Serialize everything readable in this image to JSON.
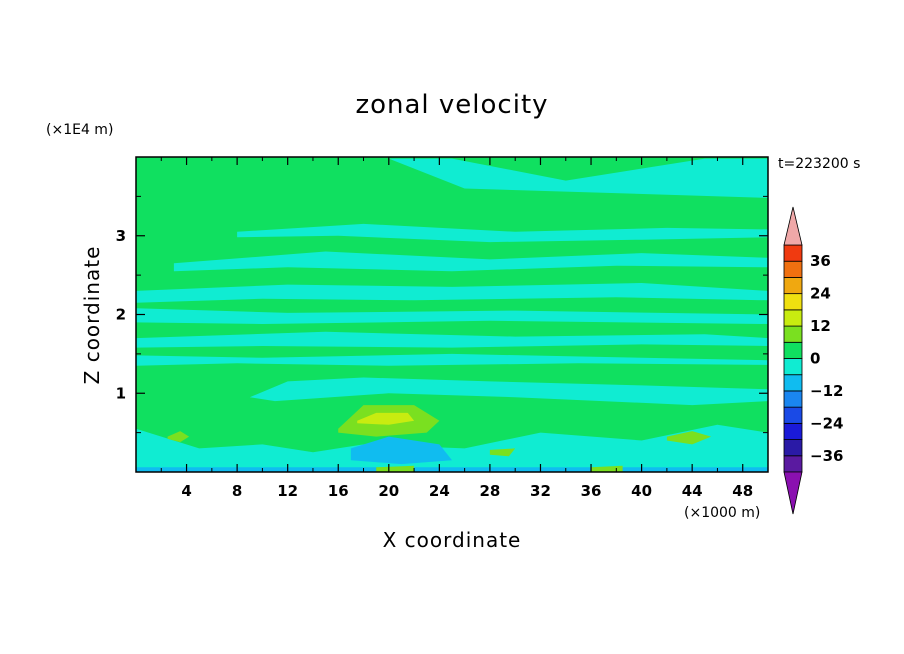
{
  "chart_data": {
    "type": "heatmap",
    "title": "zonal velocity",
    "xlabel": "X coordinate",
    "ylabel": "Z coordinate",
    "x_unit": "(×1000 m)",
    "y_unit": "(×1E4 m)",
    "time_label": "t=223200 s",
    "xlim": [
      0,
      50
    ],
    "ylim": [
      0,
      4
    ],
    "x_ticks": [
      4,
      8,
      12,
      16,
      20,
      24,
      28,
      32,
      36,
      40,
      44,
      48
    ],
    "y_ticks": [
      1,
      2,
      3
    ],
    "colorbar": {
      "levels": [
        -42,
        -36,
        -30,
        -24,
        -18,
        -12,
        -6,
        0,
        6,
        12,
        18,
        24,
        30,
        36,
        42
      ],
      "colors": [
        "#5a1aa0",
        "#2a1aa6",
        "#1a1ad8",
        "#1a4ae6",
        "#1a86f0",
        "#10bcf0",
        "#10ecd2",
        "#10e060",
        "#7ae020",
        "#c8ec10",
        "#f0e010",
        "#f0a810",
        "#f07010",
        "#f03a10",
        "#e01810"
      ],
      "under_color": "#8a10b0",
      "over_color": "#f0a8a8",
      "tick_labels": [
        "36",
        "24",
        "12",
        "0",
        "−12",
        "−24",
        "−36"
      ],
      "tick_values": [
        36,
        24,
        12,
        0,
        -12,
        -24,
        -36
      ]
    },
    "background_color": "#10e060",
    "regions": [
      {
        "level": "-6..0",
        "color": "#10ecd2",
        "x": [
          20,
          26,
          50,
          50,
          45,
          34,
          25
        ],
        "z": [
          3.98,
          3.6,
          3.48,
          3.98,
          3.98,
          3.7,
          3.98
        ]
      },
      {
        "level": "-6..0",
        "color": "#10ecd2",
        "x": [
          8,
          18,
          30,
          42,
          50,
          50,
          40,
          28,
          16,
          8
        ],
        "z": [
          3.05,
          3.15,
          3.05,
          3.1,
          3.08,
          2.98,
          2.95,
          2.92,
          3.0,
          2.98
        ]
      },
      {
        "level": "-6..0",
        "color": "#10ecd2",
        "x": [
          3,
          15,
          28,
          40,
          50,
          50,
          38,
          25,
          12,
          3
        ],
        "z": [
          2.65,
          2.8,
          2.7,
          2.78,
          2.72,
          2.6,
          2.62,
          2.55,
          2.6,
          2.55
        ]
      },
      {
        "level": "-6..0",
        "color": "#10ecd2",
        "x": [
          0,
          12,
          25,
          40,
          50,
          50,
          38,
          22,
          10,
          0
        ],
        "z": [
          2.3,
          2.38,
          2.35,
          2.4,
          2.3,
          2.18,
          2.22,
          2.18,
          2.2,
          2.15
        ]
      },
      {
        "level": "-6..0",
        "color": "#10ecd2",
        "x": [
          0,
          12,
          30,
          50,
          50,
          28,
          10,
          0
        ],
        "z": [
          2.08,
          2.02,
          2.05,
          2.0,
          1.88,
          1.92,
          1.88,
          1.9
        ]
      },
      {
        "level": "-6..0",
        "color": "#10ecd2",
        "x": [
          0,
          15,
          30,
          45,
          50,
          50,
          40,
          25,
          10,
          0
        ],
        "z": [
          1.7,
          1.78,
          1.72,
          1.75,
          1.7,
          1.6,
          1.62,
          1.58,
          1.6,
          1.58
        ]
      },
      {
        "level": "-6..0",
        "color": "#10ecd2",
        "x": [
          0,
          10,
          25,
          40,
          50,
          50,
          35,
          20,
          8,
          0
        ],
        "z": [
          1.48,
          1.45,
          1.5,
          1.45,
          1.42,
          1.36,
          1.38,
          1.35,
          1.38,
          1.35
        ]
      },
      {
        "level": "-6..0",
        "color": "#10ecd2",
        "x": [
          9,
          12,
          18,
          28,
          40,
          50,
          50,
          44,
          30,
          20,
          11
        ],
        "z": [
          0.95,
          1.15,
          1.2,
          1.15,
          1.1,
          1.05,
          0.9,
          0.85,
          0.95,
          1.0,
          0.9
        ]
      },
      {
        "level": "-6..0",
        "color": "#10ecd2",
        "x": [
          0,
          5,
          10,
          14,
          18,
          26,
          32,
          40,
          46,
          50,
          50,
          0
        ],
        "z": [
          0.55,
          0.3,
          0.35,
          0.25,
          0.35,
          0.3,
          0.5,
          0.4,
          0.6,
          0.5,
          0.0,
          0.0
        ]
      },
      {
        "level": "-12..-6",
        "color": "#10bcf0",
        "x": [
          17,
          20,
          24,
          25,
          21,
          17
        ],
        "z": [
          0.3,
          0.45,
          0.35,
          0.15,
          0.1,
          0.15
        ]
      },
      {
        "level": "-12..-6",
        "color": "#10bcf0",
        "x": [
          0,
          50,
          50,
          0
        ],
        "z": [
          0.06,
          0.06,
          0.0,
          0.0
        ]
      },
      {
        "level": "6..12",
        "color": "#7ae020",
        "x": [
          16,
          18,
          22,
          24,
          23,
          19,
          16
        ],
        "z": [
          0.55,
          0.85,
          0.85,
          0.65,
          0.5,
          0.45,
          0.5
        ]
      },
      {
        "level": "12..18",
        "color": "#c8ec10",
        "x": [
          17.5,
          19,
          21.5,
          22,
          20,
          17.5
        ],
        "z": [
          0.65,
          0.75,
          0.75,
          0.65,
          0.6,
          0.62
        ]
      },
      {
        "level": "6..12",
        "color": "#7ae020",
        "x": [
          2.5,
          3.5,
          4.2,
          3.5,
          2.5
        ],
        "z": [
          0.45,
          0.52,
          0.45,
          0.38,
          0.42
        ]
      },
      {
        "level": "6..12",
        "color": "#7ae020",
        "x": [
          42,
          44,
          45.5,
          44,
          42
        ],
        "z": [
          0.45,
          0.52,
          0.45,
          0.35,
          0.4
        ]
      },
      {
        "level": "6..12",
        "color": "#7ae020",
        "x": [
          28,
          30,
          29.5,
          28
        ],
        "z": [
          0.28,
          0.3,
          0.2,
          0.22
        ]
      },
      {
        "level": "6..12",
        "color": "#7ae020",
        "x": [
          36,
          38.5,
          38.5,
          36
        ],
        "z": [
          0.06,
          0.08,
          0.0,
          0.0
        ]
      },
      {
        "level": "6..12",
        "color": "#7ae020",
        "x": [
          19,
          22,
          22,
          19
        ],
        "z": [
          0.06,
          0.08,
          0.0,
          0.0
        ]
      }
    ]
  }
}
